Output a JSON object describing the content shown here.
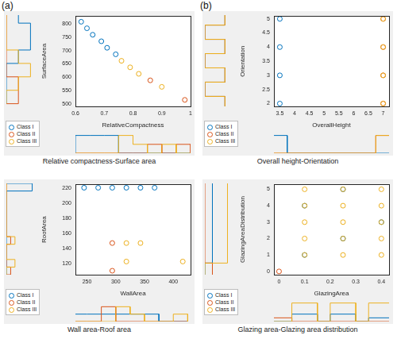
{
  "chart_data": [
    {
      "type": "scatter",
      "panel": "(a)",
      "caption": "Relative compactness-Surface area",
      "x_label": "RelativeCompactness",
      "y_label": "SurfaceArea",
      "xlim": [
        0.6,
        1
      ],
      "xticks": [
        0.6,
        0.7,
        0.8,
        0.9,
        1
      ],
      "ylim": [
        490,
        830
      ],
      "yticks": [
        500,
        550,
        600,
        650,
        700,
        750,
        800
      ],
      "grid": false,
      "legend": "southwestoutside",
      "marker": "circle",
      "x_bins": [
        0.6,
        0.65,
        0.7,
        0.75,
        0.8,
        0.85,
        0.9,
        0.95,
        1.0
      ],
      "x_count_lim": [
        0,
        2.5
      ],
      "y_bins": [
        500,
        550,
        600,
        650,
        700,
        750,
        800,
        850
      ],
      "y_count_lim": [
        0,
        2.5
      ],
      "series": [
        {
          "name": "Class I",
          "color": "#0072bd",
          "x": [
            0.62,
            0.64,
            0.66,
            0.69,
            0.71,
            0.74
          ],
          "y": [
            808.5,
            784,
            759.5,
            735,
            710.5,
            686
          ],
          "x_counts": [
            2,
            2,
            2,
            0,
            0,
            0,
            0,
            0
          ],
          "y_counts": [
            0,
            0,
            0,
            1,
            2,
            2,
            1
          ]
        },
        {
          "name": "Class II",
          "color": "#d95319",
          "x": [
            0.86,
            0.98
          ],
          "y": [
            588,
            514.5
          ],
          "x_counts": [
            0,
            0,
            0,
            0,
            0,
            1,
            0,
            1
          ],
          "y_counts": [
            1,
            1,
            0,
            0,
            0,
            0,
            0
          ]
        },
        {
          "name": "Class III",
          "color": "#edb120",
          "x": [
            0.76,
            0.79,
            0.82,
            0.9
          ],
          "y": [
            661.5,
            637,
            612.5,
            563.5
          ],
          "x_counts": [
            0,
            0,
            0,
            2,
            1,
            0,
            1,
            0
          ],
          "y_counts": [
            0,
            1,
            2,
            1,
            0,
            0,
            0
          ]
        }
      ]
    },
    {
      "type": "scatter",
      "panel": "(b)",
      "caption": "Overall height-Orientation",
      "x_label": "OverallHeight",
      "y_label": "Orientation",
      "xlim": [
        3.3,
        7.2
      ],
      "xticks": [
        3.5,
        4,
        4.5,
        5,
        5.5,
        6,
        6.5,
        7
      ],
      "ylim": [
        1.9,
        5.1
      ],
      "yticks": [
        2,
        2.5,
        3,
        3.5,
        4,
        4.5,
        5
      ],
      "grid": false,
      "legend": "southwestoutside",
      "marker": "circle",
      "x_bins": [
        3.25,
        3.75,
        6.75,
        7.25
      ],
      "x_count_lim": [
        0,
        5
      ],
      "y_bins": [
        1.75,
        2.25,
        2.75,
        3.25,
        3.75,
        4.25,
        4.75,
        5.25
      ],
      "y_count_lim": [
        0,
        1.5
      ],
      "series": [
        {
          "name": "Class I",
          "color": "#0072bd",
          "x": [
            3.5,
            3.5,
            3.5,
            3.5
          ],
          "y": [
            2,
            3,
            4,
            5
          ],
          "x_counts": [
            4,
            0,
            0
          ],
          "y_counts": [
            1,
            0,
            1,
            0,
            1,
            0,
            1
          ]
        },
        {
          "name": "Class II",
          "color": "#d95319",
          "x": [
            7,
            7,
            7,
            7
          ],
          "y": [
            2,
            3,
            4,
            5
          ],
          "x_counts": [
            0,
            0,
            4
          ],
          "y_counts": [
            1,
            0,
            1,
            0,
            1,
            0,
            1
          ]
        },
        {
          "name": "Class III",
          "color": "#edb120",
          "x": [
            7,
            7,
            7,
            7
          ],
          "y": [
            2,
            3,
            4,
            5
          ],
          "x_counts": [
            0,
            0,
            4
          ],
          "y_counts": [
            1,
            0,
            1,
            0,
            1,
            0,
            1
          ]
        }
      ]
    },
    {
      "type": "scatter",
      "caption": "Wall area-Roof area",
      "x_label": "WallArea",
      "y_label": "RoofArea",
      "xlim": [
        230,
        430
      ],
      "xticks": [
        250,
        300,
        350,
        400
      ],
      "ylim": [
        105,
        225
      ],
      "yticks": [
        120,
        140,
        160,
        180,
        200,
        220
      ],
      "grid": false,
      "legend": "southwestoutside",
      "marker": "circle",
      "x_bins": [
        225,
        250,
        275,
        300,
        325,
        350,
        375,
        400,
        425
      ],
      "x_count_lim": [
        0,
        3
      ],
      "y_bins": [
        105,
        115,
        125,
        135,
        145,
        155,
        165,
        175,
        185,
        195,
        205,
        215,
        225
      ],
      "y_count_lim": [
        0,
        7
      ],
      "series": [
        {
          "name": "Class I",
          "color": "#0072bd",
          "x": [
            245,
            269.5,
            294,
            318.5,
            343,
            367.5
          ],
          "y": [
            220.5,
            220.5,
            220.5,
            220.5,
            220.5,
            220.5
          ],
          "x_counts": [
            1,
            1,
            1,
            1,
            1,
            1,
            0,
            0
          ],
          "y_counts": [
            0,
            0,
            0,
            0,
            0,
            0,
            0,
            0,
            0,
            0,
            0,
            6
          ]
        },
        {
          "name": "Class II",
          "color": "#d95319",
          "x": [
            294,
            294
          ],
          "y": [
            147,
            110.25
          ],
          "x_counts": [
            0,
            0,
            2,
            0,
            0,
            0,
            0,
            0
          ],
          "y_counts": [
            1,
            0,
            0,
            0,
            1,
            0,
            0,
            0,
            0,
            0,
            0,
            0
          ]
        },
        {
          "name": "Class III",
          "color": "#edb120",
          "x": [
            318.5,
            343,
            318.5,
            416.5
          ],
          "y": [
            147,
            147,
            122.5,
            122.5
          ],
          "x_counts": [
            0,
            0,
            0,
            2,
            1,
            0,
            0,
            1
          ],
          "y_counts": [
            0,
            2,
            0,
            0,
            2,
            0,
            0,
            0,
            0,
            0,
            0,
            0
          ]
        }
      ]
    },
    {
      "type": "scatter",
      "caption": "Glazing area-Glazing area distribution",
      "x_label": "GlazingArea",
      "y_label": "GlazingAreaDistribution",
      "xlim": [
        -0.02,
        0.43
      ],
      "xticks": [
        0,
        0.1,
        0.2,
        0.3,
        0.4
      ],
      "ylim": [
        -0.2,
        5.3
      ],
      "yticks": [
        0,
        1,
        2,
        3,
        4,
        5
      ],
      "grid": false,
      "legend": "southwestoutside",
      "marker": "circle",
      "x_bins": [
        -0.05,
        0.05,
        0.15,
        0.2,
        0.3,
        0.35,
        0.45
      ],
      "x_count_lim": [
        0,
        6
      ],
      "y_bins": [
        -0.5,
        0.5,
        1.5,
        2.5,
        3.5,
        4.5,
        5.5
      ],
      "y_count_lim": [
        0,
        4
      ],
      "series": [
        {
          "name": "Class I",
          "color": "#0072bd",
          "x": [
            0.1,
            0.25,
            0.4,
            0.1,
            0.25
          ],
          "y": [
            1,
            2,
            3,
            4,
            5
          ],
          "x_counts": [
            0,
            2,
            0,
            2,
            0,
            1
          ],
          "y_counts": [
            0,
            1,
            1,
            1,
            1,
            1
          ]
        },
        {
          "name": "Class II",
          "color": "#d95319",
          "x": [
            0
          ],
          "y": [
            0
          ],
          "x_counts": [
            1,
            0,
            0,
            0,
            0,
            0
          ],
          "y_counts": [
            1,
            0,
            0,
            0,
            0,
            0
          ]
        },
        {
          "name": "Class III",
          "color": "#edb120",
          "x": [
            0.1,
            0.25,
            0.4,
            0.1,
            0.25,
            0.4,
            0.1,
            0.25,
            0.4,
            0.1,
            0.25,
            0.4,
            0.1,
            0.25,
            0.4
          ],
          "y": [
            1,
            1,
            1,
            2,
            2,
            2,
            3,
            3,
            3,
            4,
            4,
            4,
            5,
            5,
            5
          ],
          "x_counts": [
            0,
            5,
            0,
            5,
            0,
            5
          ],
          "y_counts": [
            0,
            3,
            3,
            3,
            3,
            3
          ]
        }
      ]
    }
  ]
}
